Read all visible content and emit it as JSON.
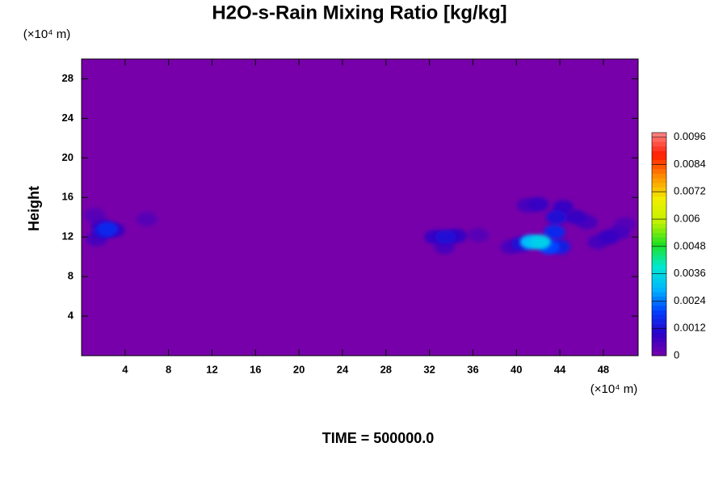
{
  "chart_data": {
    "type": "contour",
    "title": "H2O-s-Rain Mixing Ratio [kg/kg]",
    "ylabel": "Height",
    "x_unit": "(×10⁴ m)",
    "y_unit": "(×10⁴ m)",
    "footer": "TIME = 500000.0",
    "xlim": [
      0,
      51.2
    ],
    "ylim": [
      0,
      30
    ],
    "xticks": [
      4,
      8,
      12,
      16,
      20,
      24,
      28,
      32,
      36,
      40,
      44,
      48
    ],
    "yticks": [
      4,
      8,
      12,
      16,
      20,
      24,
      28
    ],
    "zlim": [
      0,
      0.0098
    ],
    "zticks": [
      0,
      0.0012,
      0.0024,
      0.0036,
      0.0048,
      0.006,
      0.0072,
      0.0084,
      0.0096
    ],
    "colormap": [
      "#7700aa",
      "#2a00c8",
      "#0040ff",
      "#00b8ff",
      "#00e8d0",
      "#20e020",
      "#c0f000",
      "#f0f000",
      "#ff9000",
      "#ff1a00",
      "#ff8888"
    ],
    "x": [
      1.2,
      6,
      36.5,
      50,
      1.8,
      1.4,
      3.0,
      33.4,
      39.5,
      41,
      46.5,
      47.5,
      49.5,
      32.5,
      34.5,
      42,
      44.3,
      45.5,
      48.5,
      2.0,
      33.5,
      40.5,
      43.7,
      44,
      2.4,
      43.5,
      43,
      41.3,
      42.2
    ],
    "y": [
      14.2,
      13.8,
      12.2,
      13.3,
      13.2,
      11.8,
      12.7,
      11,
      11,
      15.2,
      13.5,
      11.5,
      12.5,
      12,
      12.1,
      15.3,
      15,
      14,
      12,
      12.6,
      12,
      11.3,
      14,
      11,
      12.8,
      12.5,
      11,
      11.5,
      11.5
    ],
    "values": [
      0.0004,
      0.0004,
      0.0004,
      0.0004,
      0.0006,
      0.0006,
      0.0008,
      0.0006,
      0.0006,
      0.0006,
      0.0006,
      0.0006,
      0.0006,
      0.0008,
      0.0008,
      0.0008,
      0.0008,
      0.0008,
      0.0008,
      0.0012,
      0.0012,
      0.0012,
      0.0012,
      0.0014,
      0.0016,
      0.0016,
      0.002,
      0.003,
      0.0034
    ]
  }
}
